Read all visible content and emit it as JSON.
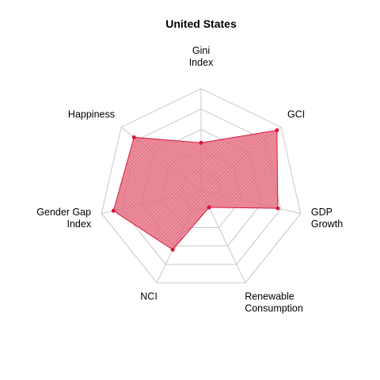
{
  "chart_data": {
    "type": "radar",
    "title": "United States",
    "axes": [
      [
        "Gini",
        "Index"
      ],
      [
        "GCI"
      ],
      [
        "GDP",
        "Growth"
      ],
      [
        "Renewable",
        "Consumption"
      ],
      [
        "NCI"
      ],
      [
        "Gender Gap",
        "Index"
      ],
      [
        "Happiness"
      ]
    ],
    "range": [
      0,
      1
    ],
    "grid_levels": 5,
    "series": [
      {
        "values": [
          0.47,
          0.95,
          0.77,
          0.18,
          0.64,
          0.88,
          0.84
        ],
        "color": "#dc143c",
        "fill_opacity": 0.5
      }
    ]
  }
}
